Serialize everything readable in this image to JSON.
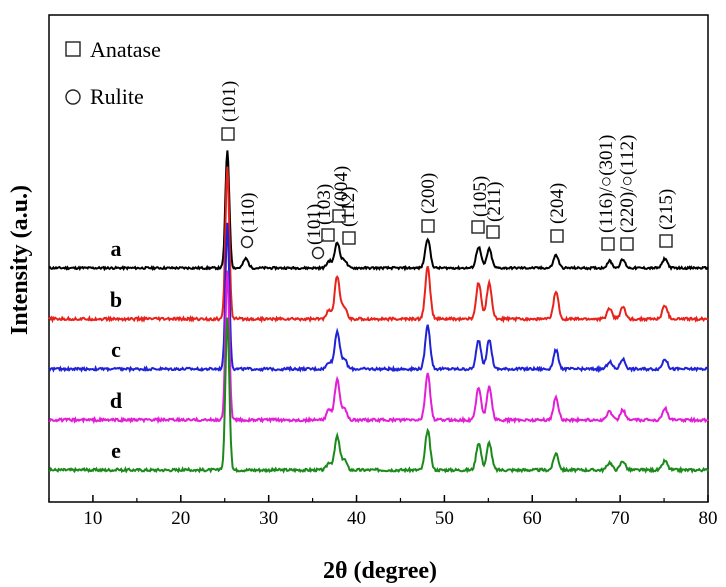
{
  "chart_data": {
    "type": "line",
    "xlabel": "2θ (degree)",
    "ylabel": "Intensity (a.u.)",
    "xlim": [
      5,
      80
    ],
    "x_ticks": [
      10,
      20,
      30,
      40,
      50,
      60,
      70,
      80
    ],
    "y_ticks": "none",
    "grid": false,
    "legend_position": "top-left",
    "legend": [
      {
        "symbol": "square",
        "label": "Anatase"
      },
      {
        "symbol": "circle",
        "label": "Rulite"
      }
    ],
    "series": [
      {
        "name": "a",
        "color": "#000000",
        "peaks": [
          {
            "x": 25.3,
            "h": 1.0
          },
          {
            "x": 27.4,
            "h": 0.08
          },
          {
            "x": 36.9,
            "h": 0.06
          },
          {
            "x": 37.8,
            "h": 0.22
          },
          {
            "x": 38.6,
            "h": 0.07
          },
          {
            "x": 48.1,
            "h": 0.25
          },
          {
            "x": 53.9,
            "h": 0.18
          },
          {
            "x": 55.1,
            "h": 0.16
          },
          {
            "x": 62.7,
            "h": 0.11
          },
          {
            "x": 68.8,
            "h": 0.06
          },
          {
            "x": 70.3,
            "h": 0.07
          },
          {
            "x": 75.1,
            "h": 0.08
          }
        ]
      },
      {
        "name": "b",
        "color": "#e8231c",
        "peaks": [
          {
            "x": 25.3,
            "h": 1.0
          },
          {
            "x": 36.9,
            "h": 0.06
          },
          {
            "x": 37.8,
            "h": 0.28
          },
          {
            "x": 38.6,
            "h": 0.08
          },
          {
            "x": 48.1,
            "h": 0.34
          },
          {
            "x": 53.9,
            "h": 0.24
          },
          {
            "x": 55.1,
            "h": 0.24
          },
          {
            "x": 62.7,
            "h": 0.18
          },
          {
            "x": 68.8,
            "h": 0.07
          },
          {
            "x": 70.3,
            "h": 0.08
          },
          {
            "x": 75.1,
            "h": 0.09
          }
        ]
      },
      {
        "name": "c",
        "color": "#1f23d6",
        "peaks": [
          {
            "x": 25.3,
            "h": 1.0
          },
          {
            "x": 36.9,
            "h": 0.05
          },
          {
            "x": 37.8,
            "h": 0.26
          },
          {
            "x": 38.6,
            "h": 0.07
          },
          {
            "x": 48.1,
            "h": 0.3
          },
          {
            "x": 53.9,
            "h": 0.2
          },
          {
            "x": 55.1,
            "h": 0.2
          },
          {
            "x": 62.7,
            "h": 0.13
          },
          {
            "x": 68.8,
            "h": 0.05
          },
          {
            "x": 70.3,
            "h": 0.07
          },
          {
            "x": 75.1,
            "h": 0.07
          }
        ]
      },
      {
        "name": "d",
        "color": "#e21ed8",
        "peaks": [
          {
            "x": 25.3,
            "h": 1.0
          },
          {
            "x": 36.9,
            "h": 0.07
          },
          {
            "x": 37.8,
            "h": 0.27
          },
          {
            "x": 38.6,
            "h": 0.08
          },
          {
            "x": 48.1,
            "h": 0.31
          },
          {
            "x": 53.9,
            "h": 0.22
          },
          {
            "x": 55.1,
            "h": 0.22
          },
          {
            "x": 62.7,
            "h": 0.15
          },
          {
            "x": 68.8,
            "h": 0.06
          },
          {
            "x": 70.3,
            "h": 0.07
          },
          {
            "x": 75.1,
            "h": 0.08
          }
        ]
      },
      {
        "name": "e",
        "color": "#1b8a1b",
        "peaks": [
          {
            "x": 25.3,
            "h": 1.0
          },
          {
            "x": 36.9,
            "h": 0.05
          },
          {
            "x": 37.8,
            "h": 0.22
          },
          {
            "x": 38.6,
            "h": 0.07
          },
          {
            "x": 48.1,
            "h": 0.26
          },
          {
            "x": 53.9,
            "h": 0.18
          },
          {
            "x": 55.1,
            "h": 0.18
          },
          {
            "x": 62.7,
            "h": 0.11
          },
          {
            "x": 68.8,
            "h": 0.05
          },
          {
            "x": 70.3,
            "h": 0.06
          },
          {
            "x": 75.1,
            "h": 0.06
          }
        ]
      }
    ],
    "annotations": [
      {
        "phase": "anatase",
        "label": "(101)",
        "x": 25.3
      },
      {
        "phase": "rutile",
        "label": "(110)",
        "x": 27.4
      },
      {
        "phase": "rutile",
        "label": "(101)",
        "x": 36.0
      },
      {
        "phase": "anatase",
        "label": "(103)",
        "x": 36.9
      },
      {
        "phase": "anatase",
        "label": "(004)",
        "x": 37.8
      },
      {
        "phase": "anatase",
        "label": "(112)",
        "x": 38.6
      },
      {
        "phase": "anatase",
        "label": "(200)",
        "x": 48.1
      },
      {
        "phase": "anatase",
        "label": "(105)",
        "x": 53.9
      },
      {
        "phase": "anatase",
        "label": "(211)",
        "x": 55.1
      },
      {
        "phase": "anatase",
        "label": "(204)",
        "x": 62.7
      },
      {
        "phase": "anatase",
        "label": "(116)/○(301)",
        "x": 68.8
      },
      {
        "phase": "anatase",
        "label": "(220)/○(112)",
        "x": 70.3
      },
      {
        "phase": "anatase",
        "label": "(215)",
        "x": 75.1
      }
    ]
  }
}
